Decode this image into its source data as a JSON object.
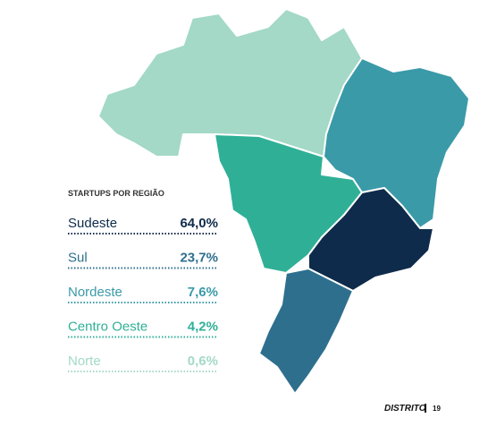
{
  "legend": {
    "title": "STARTUPS POR REGIÃO",
    "rows": [
      {
        "name": "Sudeste",
        "value": "64,0%",
        "color": "#0f2b4b"
      },
      {
        "name": "Sul",
        "value": "23,7%",
        "color": "#2e6f8e"
      },
      {
        "name": "Nordeste",
        "value": "7,6%",
        "color": "#3a9aa8"
      },
      {
        "name": "Centro Oeste",
        "value": "4,2%",
        "color": "#2fb096"
      },
      {
        "name": "Norte",
        "value": "0,6%",
        "color": "#a3d9c6"
      }
    ]
  },
  "footer": {
    "brand": "DISTRITO",
    "page": "19"
  }
}
